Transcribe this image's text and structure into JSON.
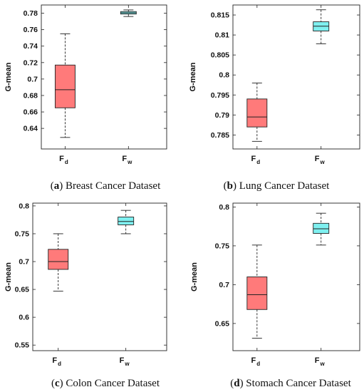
{
  "chart_data": [
    {
      "type": "box",
      "caption": {
        "letter": "a",
        "text": "Breast Cancer Dataset"
      },
      "ylabel": "G-mean",
      "ylim": [
        0.615,
        0.79
      ],
      "yticks": [
        0.64,
        0.66,
        0.68,
        0.7,
        0.72,
        0.74,
        0.76,
        0.78
      ],
      "ytick_labels": [
        "0.64",
        "0.66",
        "0.68",
        "0.7",
        "0.72",
        "0.74",
        "0.76",
        "0.78"
      ],
      "categories": [
        {
          "main": "F",
          "sub": "d"
        },
        {
          "main": "F",
          "sub": "w"
        }
      ],
      "boxes": [
        {
          "min": 0.629,
          "q1": 0.665,
          "median": 0.687,
          "q3": 0.717,
          "max": 0.755,
          "color": "#ff7a7a"
        },
        {
          "min": 0.776,
          "q1": 0.779,
          "median": 0.7805,
          "q3": 0.782,
          "max": 0.784,
          "color": "#7ff0f0"
        }
      ]
    },
    {
      "type": "box",
      "caption": {
        "letter": "b",
        "text": "Lung Cancer Dataset"
      },
      "ylabel": "G-mean",
      "ylim": [
        0.7815,
        0.8175
      ],
      "yticks": [
        0.785,
        0.79,
        0.795,
        0.8,
        0.805,
        0.81,
        0.815
      ],
      "ytick_labels": [
        "0.785",
        "0.79",
        "0.795",
        "0.8",
        "0.805",
        "0.81",
        "0.815"
      ],
      "categories": [
        {
          "main": "F",
          "sub": "d"
        },
        {
          "main": "F",
          "sub": "w"
        }
      ],
      "boxes": [
        {
          "min": 0.7834,
          "q1": 0.787,
          "median": 0.7895,
          "q3": 0.794,
          "max": 0.798,
          "color": "#ff7a7a"
        },
        {
          "min": 0.8078,
          "q1": 0.811,
          "median": 0.8122,
          "q3": 0.8133,
          "max": 0.8163,
          "color": "#7ff0f0"
        }
      ]
    },
    {
      "type": "box",
      "caption": {
        "letter": "c",
        "text": "Colon Cancer Dataset"
      },
      "ylabel": "G-mean",
      "ylim": [
        0.54,
        0.805
      ],
      "yticks": [
        0.55,
        0.6,
        0.65,
        0.7,
        0.75,
        0.8
      ],
      "ytick_labels": [
        "0.55",
        "0.6",
        "0.65",
        "0.7",
        "0.75",
        "0.8"
      ],
      "categories": [
        {
          "main": "F",
          "sub": "d"
        },
        {
          "main": "F",
          "sub": "w"
        }
      ],
      "boxes": [
        {
          "min": 0.647,
          "q1": 0.686,
          "median": 0.7,
          "q3": 0.722,
          "max": 0.75,
          "color": "#ff7a7a"
        },
        {
          "min": 0.75,
          "q1": 0.766,
          "median": 0.772,
          "q3": 0.78,
          "max": 0.792,
          "color": "#7ff0f0"
        }
      ]
    },
    {
      "type": "box",
      "caption": {
        "letter": "d",
        "text": "Stomach Cancer Dataset"
      },
      "ylabel": "G-mean",
      "ylim": [
        0.615,
        0.805
      ],
      "yticks": [
        0.65,
        0.7,
        0.75,
        0.8
      ],
      "ytick_labels": [
        "0.65",
        "0.7",
        "0.75",
        "0.8"
      ],
      "categories": [
        {
          "main": "F",
          "sub": "d"
        },
        {
          "main": "F",
          "sub": "w"
        }
      ],
      "boxes": [
        {
          "min": 0.631,
          "q1": 0.668,
          "median": 0.687,
          "q3": 0.71,
          "max": 0.751,
          "color": "#ff7a7a"
        },
        {
          "min": 0.751,
          "q1": 0.766,
          "median": 0.772,
          "q3": 0.779,
          "max": 0.792,
          "color": "#7ff0f0"
        }
      ]
    }
  ]
}
